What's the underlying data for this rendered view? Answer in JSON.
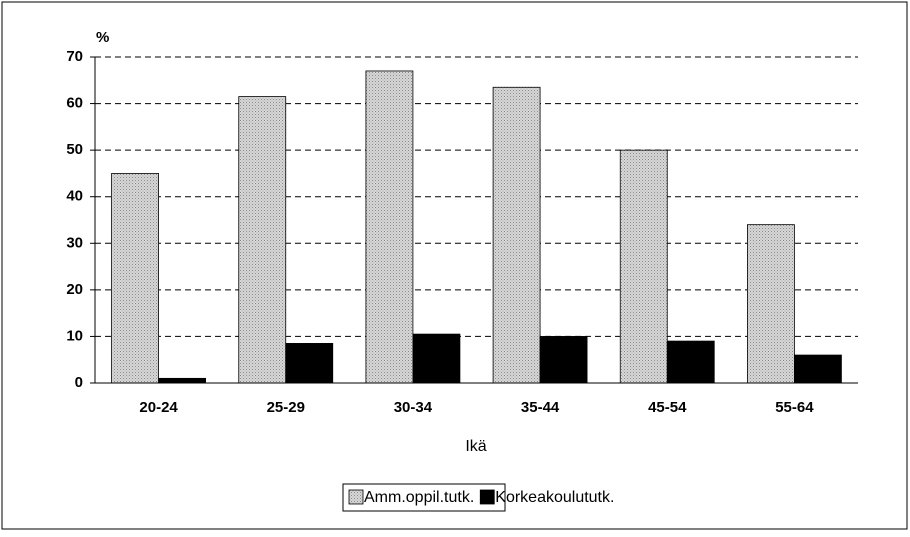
{
  "chart_data": {
    "type": "bar",
    "y_label": "%",
    "x_label": "Ikä",
    "categories": [
      "20-24",
      "25-29",
      "30-34",
      "35-44",
      "45-54",
      "55-64"
    ],
    "series": [
      {
        "name": "Amm.oppil.tutk.",
        "color": "#c4c4c4",
        "values": [
          45,
          61.5,
          67,
          63.5,
          50,
          34
        ]
      },
      {
        "name": "Korkeakoulututk.",
        "color": "#000000",
        "values": [
          1,
          8.5,
          10.5,
          10,
          9,
          6
        ]
      }
    ],
    "ylim": [
      0,
      70
    ],
    "yticks": [
      0,
      10,
      20,
      30,
      40,
      50,
      60,
      70
    ],
    "grid": true,
    "legend": "bottom"
  }
}
